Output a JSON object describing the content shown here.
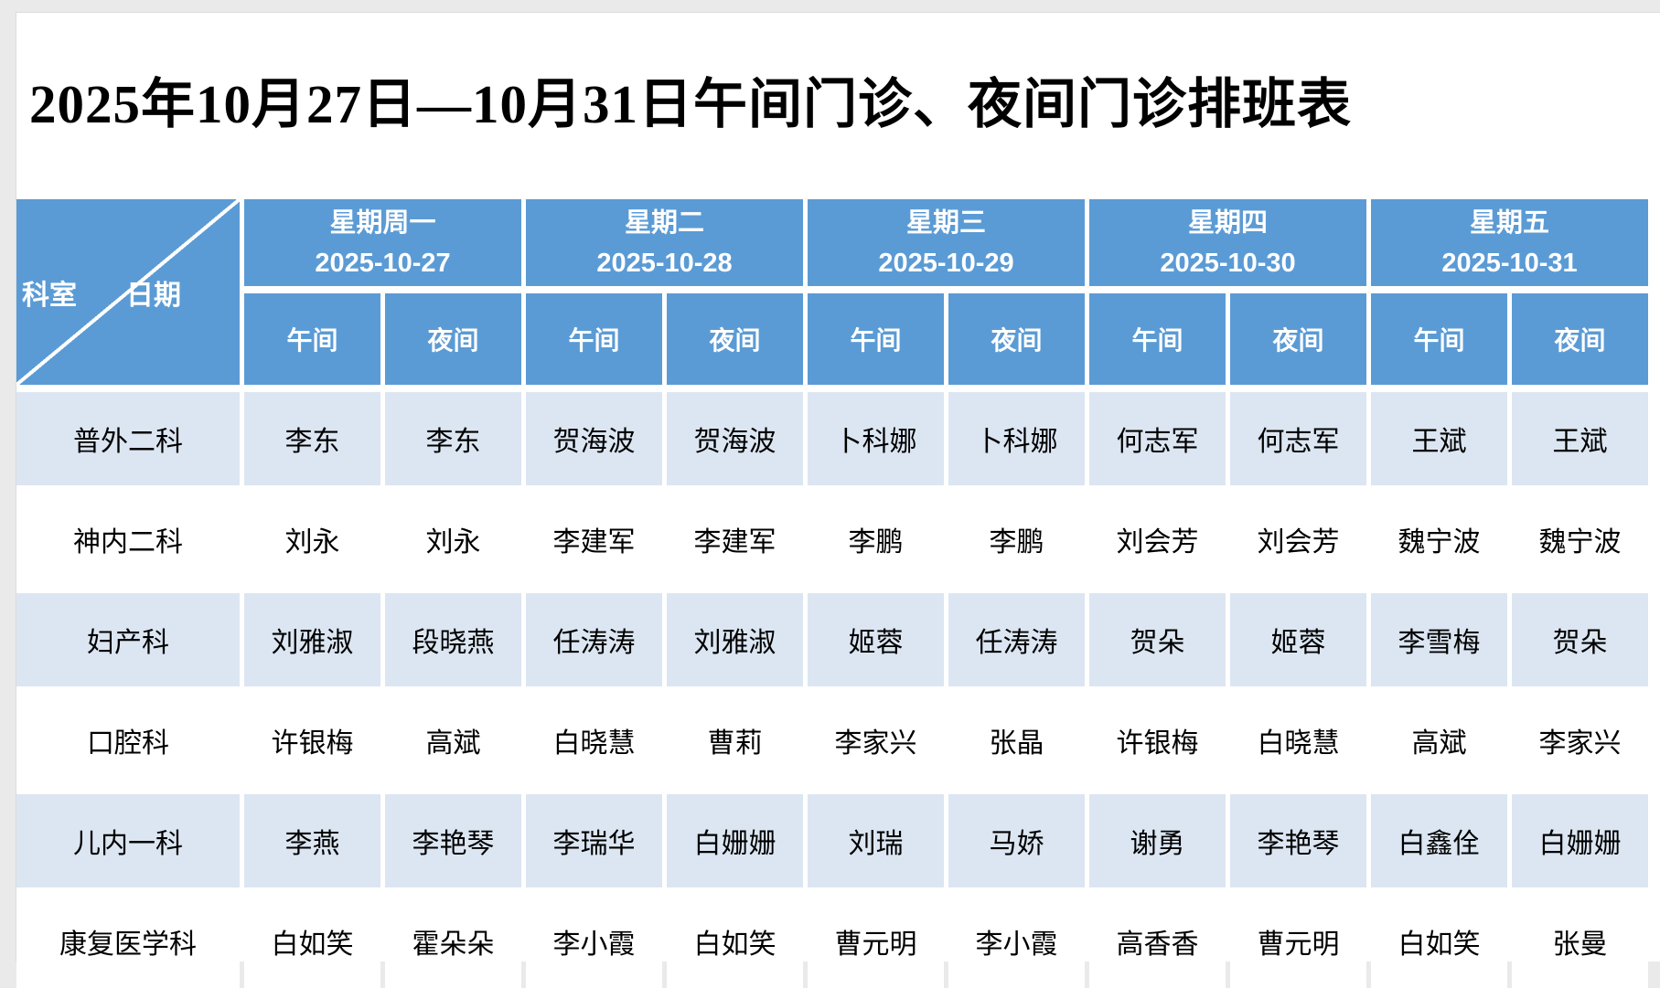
{
  "page": {
    "title": "2025年10月27日—10月31日午间门诊、夜间门诊排班表"
  },
  "table": {
    "corner": {
      "row_axis": "科室",
      "col_axis": "日期"
    },
    "days": [
      {
        "name": "星期周一",
        "date": "2025-10-27"
      },
      {
        "name": "星期二",
        "date": "2025-10-28"
      },
      {
        "name": "星期三",
        "date": "2025-10-29"
      },
      {
        "name": "星期四",
        "date": "2025-10-30"
      },
      {
        "name": "星期五",
        "date": "2025-10-31"
      }
    ],
    "shifts": [
      "午间",
      "夜间"
    ],
    "rows": [
      {
        "department": "普外二科",
        "cells": [
          "李东",
          "李东",
          "贺海波",
          "贺海波",
          "卜科娜",
          "卜科娜",
          "何志军",
          "何志军",
          "王斌",
          "王斌"
        ]
      },
      {
        "department": "神内二科",
        "cells": [
          "刘永",
          "刘永",
          "李建军",
          "李建军",
          "李鹏",
          "李鹏",
          "刘会芳",
          "刘会芳",
          "魏宁波",
          "魏宁波"
        ]
      },
      {
        "department": "妇产科",
        "cells": [
          "刘雅淑",
          "段晓燕",
          "任涛涛",
          "刘雅淑",
          "姬蓉",
          "任涛涛",
          "贺朵",
          "姬蓉",
          "李雪梅",
          "贺朵"
        ]
      },
      {
        "department": "口腔科",
        "cells": [
          "许银梅",
          "高斌",
          "白晓慧",
          "曹莉",
          "李家兴",
          "张晶",
          "许银梅",
          "白晓慧",
          "高斌",
          "李家兴"
        ]
      },
      {
        "department": "儿内一科",
        "cells": [
          "李燕",
          "李艳琴",
          "李瑞华",
          "白姗姗",
          "刘瑞",
          "马娇",
          "谢勇",
          "李艳琴",
          "白鑫佺",
          "白姗姗"
        ]
      },
      {
        "department": "康复医学科",
        "cells": [
          "白如笑",
          "霍朵朵",
          "李小霞",
          "白如笑",
          "曹元明",
          "李小霞",
          "高香香",
          "曹元明",
          "白如笑",
          "张曼"
        ]
      }
    ],
    "colors": {
      "header_bg": "#5b9bd5",
      "band_bg": "#dce6f2",
      "page_margin": "#eaeaea"
    }
  }
}
